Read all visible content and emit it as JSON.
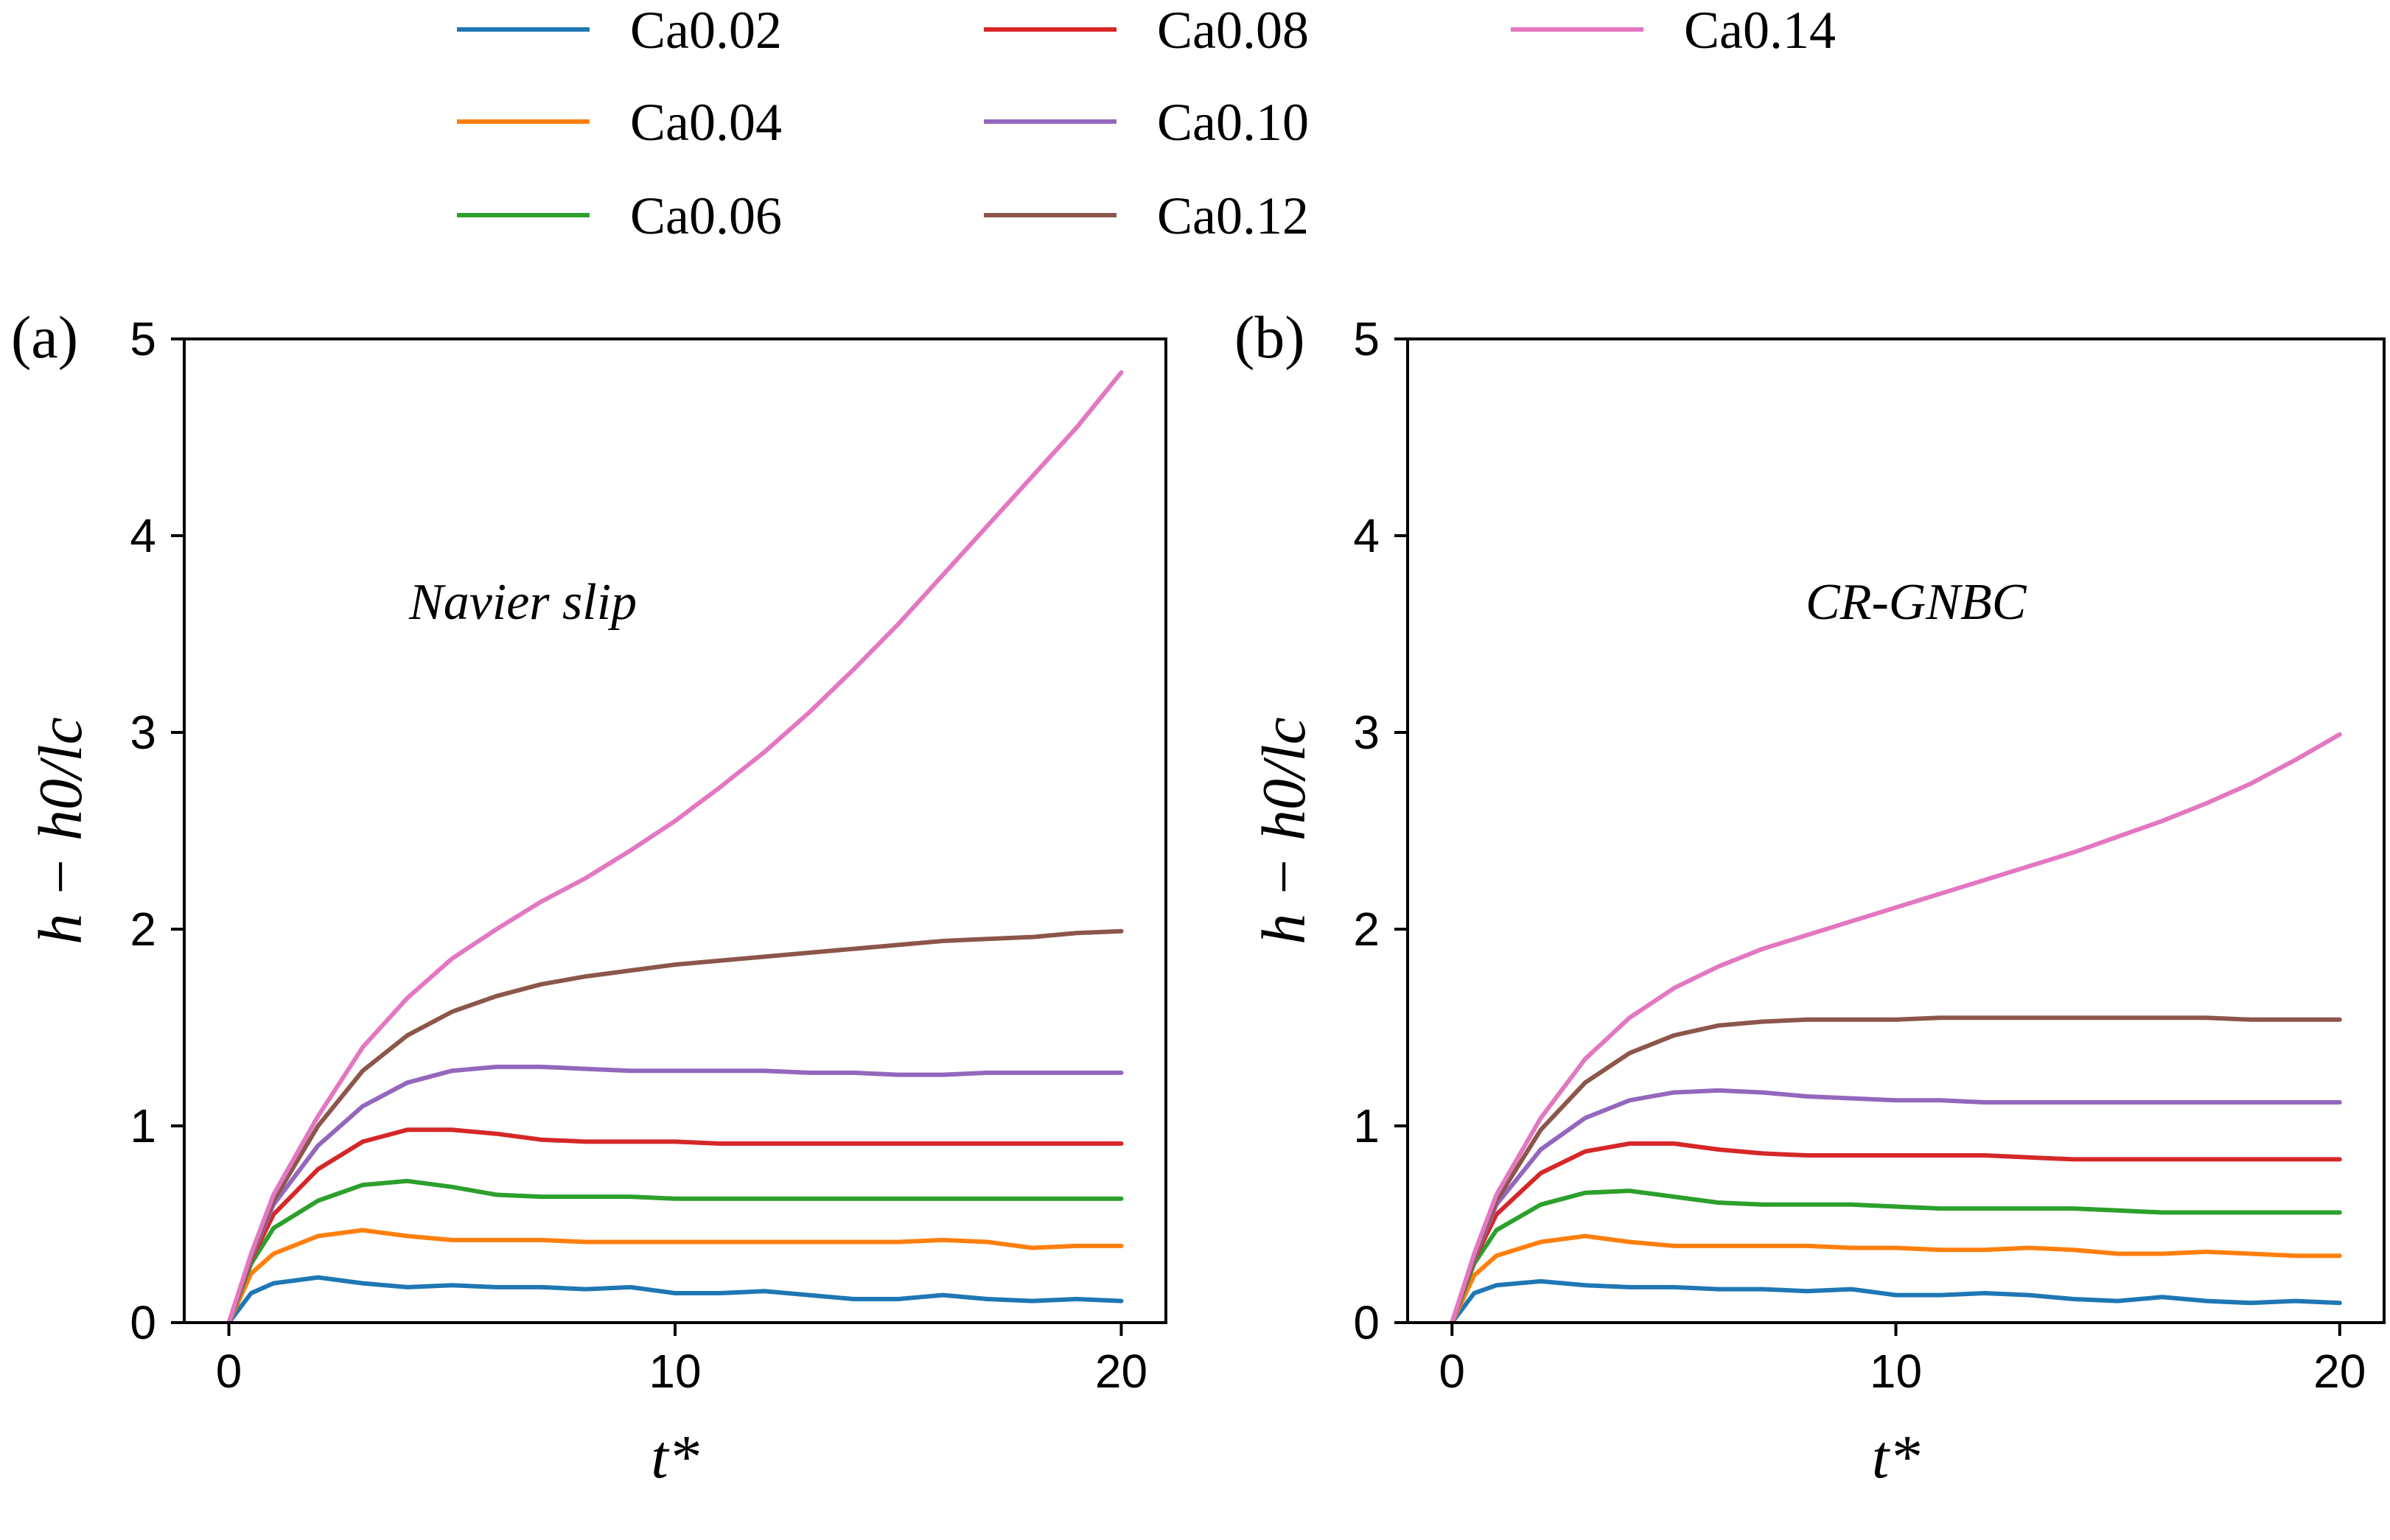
{
  "legend": [
    {
      "label": "Ca0.02",
      "color": "#1f77b4"
    },
    {
      "label": "Ca0.04",
      "color": "#ff7f0e"
    },
    {
      "label": "Ca0.06",
      "color": "#2ca02c"
    },
    {
      "label": "Ca0.08",
      "color": "#d62728"
    },
    {
      "label": "Ca0.10",
      "color": "#9467bd"
    },
    {
      "label": "Ca0.12",
      "color": "#8c564b"
    },
    {
      "label": "Ca0.14",
      "color": "#e377c2"
    }
  ],
  "chart_data": [
    {
      "type": "line",
      "panel_label": "(a)",
      "annotation": "Navier slip",
      "xlabel": "t*",
      "ylabel": "h − h0/lc",
      "xlim": [
        -1,
        21
      ],
      "ylim": [
        0,
        5
      ],
      "xticks": [
        0,
        10,
        20
      ],
      "yticks": [
        0,
        1,
        2,
        3,
        4,
        5
      ],
      "grid": false,
      "legend_position": "top, above both panels",
      "series": [
        {
          "name": "Ca0.02",
          "color": "#1f77b4",
          "x": [
            0,
            0.5,
            1,
            2,
            3,
            4,
            5,
            6,
            7,
            8,
            9,
            10,
            11,
            12,
            13,
            14,
            15,
            16,
            17,
            18,
            19,
            20
          ],
          "y": [
            0,
            0.15,
            0.2,
            0.23,
            0.2,
            0.18,
            0.19,
            0.18,
            0.18,
            0.17,
            0.18,
            0.15,
            0.15,
            0.16,
            0.14,
            0.12,
            0.12,
            0.14,
            0.12,
            0.11,
            0.12,
            0.11
          ]
        },
        {
          "name": "Ca0.04",
          "color": "#ff7f0e",
          "x": [
            0,
            0.5,
            1,
            2,
            3,
            4,
            5,
            6,
            7,
            8,
            9,
            10,
            11,
            12,
            13,
            14,
            15,
            16,
            17,
            18,
            19,
            20
          ],
          "y": [
            0,
            0.25,
            0.35,
            0.44,
            0.47,
            0.44,
            0.42,
            0.42,
            0.42,
            0.41,
            0.41,
            0.41,
            0.41,
            0.41,
            0.41,
            0.41,
            0.41,
            0.42,
            0.41,
            0.38,
            0.39,
            0.39
          ]
        },
        {
          "name": "Ca0.06",
          "color": "#2ca02c",
          "x": [
            0,
            0.5,
            1,
            2,
            3,
            4,
            5,
            6,
            7,
            8,
            9,
            10,
            11,
            12,
            13,
            14,
            15,
            16,
            17,
            18,
            19,
            20
          ],
          "y": [
            0,
            0.3,
            0.48,
            0.62,
            0.7,
            0.72,
            0.69,
            0.65,
            0.64,
            0.64,
            0.64,
            0.63,
            0.63,
            0.63,
            0.63,
            0.63,
            0.63,
            0.63,
            0.63,
            0.63,
            0.63,
            0.63
          ]
        },
        {
          "name": "Ca0.08",
          "color": "#d62728",
          "x": [
            0,
            0.5,
            1,
            2,
            3,
            4,
            5,
            6,
            7,
            8,
            9,
            10,
            11,
            12,
            13,
            14,
            15,
            16,
            17,
            18,
            19,
            20
          ],
          "y": [
            0,
            0.32,
            0.55,
            0.78,
            0.92,
            0.98,
            0.98,
            0.96,
            0.93,
            0.92,
            0.92,
            0.92,
            0.91,
            0.91,
            0.91,
            0.91,
            0.91,
            0.91,
            0.91,
            0.91,
            0.91,
            0.91
          ]
        },
        {
          "name": "Ca0.10",
          "color": "#9467bd",
          "x": [
            0,
            0.5,
            1,
            2,
            3,
            4,
            5,
            6,
            7,
            8,
            9,
            10,
            11,
            12,
            13,
            14,
            15,
            16,
            17,
            18,
            19,
            20
          ],
          "y": [
            0,
            0.33,
            0.6,
            0.9,
            1.1,
            1.22,
            1.28,
            1.3,
            1.3,
            1.29,
            1.28,
            1.28,
            1.28,
            1.28,
            1.27,
            1.27,
            1.26,
            1.26,
            1.27,
            1.27,
            1.27,
            1.27
          ]
        },
        {
          "name": "Ca0.12",
          "color": "#8c564b",
          "x": [
            0,
            0.5,
            1,
            2,
            3,
            4,
            5,
            6,
            7,
            8,
            9,
            10,
            11,
            12,
            13,
            14,
            15,
            16,
            17,
            18,
            19,
            20
          ],
          "y": [
            0,
            0.34,
            0.62,
            1.0,
            1.28,
            1.46,
            1.58,
            1.66,
            1.72,
            1.76,
            1.79,
            1.82,
            1.84,
            1.86,
            1.88,
            1.9,
            1.92,
            1.94,
            1.95,
            1.96,
            1.98,
            1.99
          ]
        },
        {
          "name": "Ca0.14",
          "color": "#e377c2",
          "x": [
            0,
            0.5,
            1,
            2,
            3,
            4,
            5,
            6,
            7,
            8,
            9,
            10,
            11,
            12,
            13,
            14,
            15,
            16,
            17,
            18,
            19,
            20
          ],
          "y": [
            0,
            0.35,
            0.65,
            1.05,
            1.4,
            1.65,
            1.85,
            2.0,
            2.14,
            2.26,
            2.4,
            2.55,
            2.72,
            2.9,
            3.1,
            3.32,
            3.55,
            3.8,
            4.05,
            4.3,
            4.55,
            4.83
          ]
        }
      ]
    },
    {
      "type": "line",
      "panel_label": "(b)",
      "annotation": "CR-GNBC",
      "xlabel": "t*",
      "ylabel": "h − h0/lc",
      "xlim": [
        -1,
        21
      ],
      "ylim": [
        0,
        5
      ],
      "xticks": [
        0,
        10,
        20
      ],
      "yticks": [
        0,
        1,
        2,
        3,
        4,
        5
      ],
      "grid": false,
      "series": [
        {
          "name": "Ca0.02",
          "color": "#1f77b4",
          "x": [
            0,
            0.5,
            1,
            2,
            3,
            4,
            5,
            6,
            7,
            8,
            9,
            10,
            11,
            12,
            13,
            14,
            15,
            16,
            17,
            18,
            19,
            20
          ],
          "y": [
            0,
            0.15,
            0.19,
            0.21,
            0.19,
            0.18,
            0.18,
            0.17,
            0.17,
            0.16,
            0.17,
            0.14,
            0.14,
            0.15,
            0.14,
            0.12,
            0.11,
            0.13,
            0.11,
            0.1,
            0.11,
            0.1
          ]
        },
        {
          "name": "Ca0.04",
          "color": "#ff7f0e",
          "x": [
            0,
            0.5,
            1,
            2,
            3,
            4,
            5,
            6,
            7,
            8,
            9,
            10,
            11,
            12,
            13,
            14,
            15,
            16,
            17,
            18,
            19,
            20
          ],
          "y": [
            0,
            0.24,
            0.34,
            0.41,
            0.44,
            0.41,
            0.39,
            0.39,
            0.39,
            0.39,
            0.38,
            0.38,
            0.37,
            0.37,
            0.38,
            0.37,
            0.35,
            0.35,
            0.36,
            0.35,
            0.34,
            0.34
          ]
        },
        {
          "name": "Ca0.06",
          "color": "#2ca02c",
          "x": [
            0,
            0.5,
            1,
            2,
            3,
            4,
            5,
            6,
            7,
            8,
            9,
            10,
            11,
            12,
            13,
            14,
            15,
            16,
            17,
            18,
            19,
            20
          ],
          "y": [
            0,
            0.3,
            0.47,
            0.6,
            0.66,
            0.67,
            0.64,
            0.61,
            0.6,
            0.6,
            0.6,
            0.59,
            0.58,
            0.58,
            0.58,
            0.58,
            0.57,
            0.56,
            0.56,
            0.56,
            0.56,
            0.56
          ]
        },
        {
          "name": "Ca0.08",
          "color": "#d62728",
          "x": [
            0,
            0.5,
            1,
            2,
            3,
            4,
            5,
            6,
            7,
            8,
            9,
            10,
            11,
            12,
            13,
            14,
            15,
            16,
            17,
            18,
            19,
            20
          ],
          "y": [
            0,
            0.32,
            0.55,
            0.76,
            0.87,
            0.91,
            0.91,
            0.88,
            0.86,
            0.85,
            0.85,
            0.85,
            0.85,
            0.85,
            0.84,
            0.83,
            0.83,
            0.83,
            0.83,
            0.83,
            0.83,
            0.83
          ]
        },
        {
          "name": "Ca0.10",
          "color": "#9467bd",
          "x": [
            0,
            0.5,
            1,
            2,
            3,
            4,
            5,
            6,
            7,
            8,
            9,
            10,
            11,
            12,
            13,
            14,
            15,
            16,
            17,
            18,
            19,
            20
          ],
          "y": [
            0,
            0.33,
            0.6,
            0.88,
            1.04,
            1.13,
            1.17,
            1.18,
            1.17,
            1.15,
            1.14,
            1.13,
            1.13,
            1.12,
            1.12,
            1.12,
            1.12,
            1.12,
            1.12,
            1.12,
            1.12,
            1.12
          ]
        },
        {
          "name": "Ca0.12",
          "color": "#8c564b",
          "x": [
            0,
            0.5,
            1,
            2,
            3,
            4,
            5,
            6,
            7,
            8,
            9,
            10,
            11,
            12,
            13,
            14,
            15,
            16,
            17,
            18,
            19,
            20
          ],
          "y": [
            0,
            0.34,
            0.62,
            0.98,
            1.22,
            1.37,
            1.46,
            1.51,
            1.53,
            1.54,
            1.54,
            1.54,
            1.55,
            1.55,
            1.55,
            1.55,
            1.55,
            1.55,
            1.55,
            1.54,
            1.54,
            1.54
          ]
        },
        {
          "name": "Ca0.14",
          "color": "#e377c2",
          "x": [
            0,
            0.5,
            1,
            2,
            3,
            4,
            5,
            6,
            7,
            8,
            9,
            10,
            11,
            12,
            13,
            14,
            15,
            16,
            17,
            18,
            19,
            20
          ],
          "y": [
            0,
            0.35,
            0.65,
            1.04,
            1.34,
            1.55,
            1.7,
            1.81,
            1.9,
            1.97,
            2.04,
            2.11,
            2.18,
            2.25,
            2.32,
            2.39,
            2.47,
            2.55,
            2.64,
            2.74,
            2.86,
            2.99
          ]
        }
      ]
    }
  ]
}
